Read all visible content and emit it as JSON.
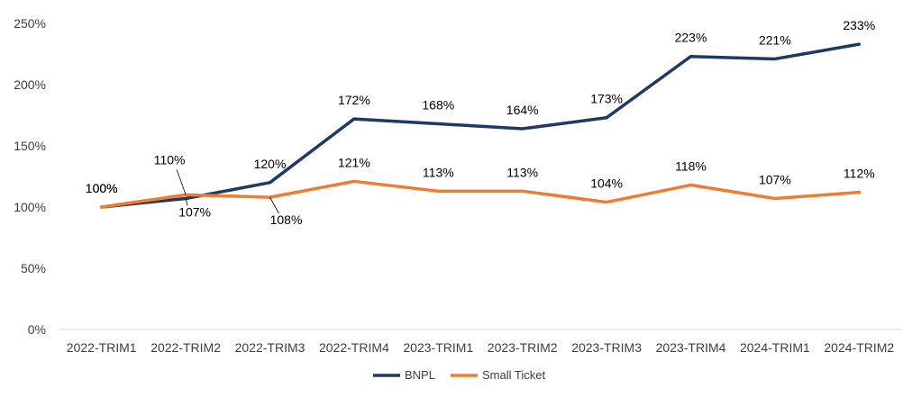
{
  "chart_data": {
    "type": "line",
    "categories": [
      "2022-TRIM1",
      "2022-TRIM2",
      "2022-TRIM3",
      "2022-TRIM4",
      "2023-TRIM1",
      "2023-TRIM2",
      "2023-TRIM3",
      "2023-TRIM4",
      "2024-TRIM1",
      "2024-TRIM2"
    ],
    "series": [
      {
        "name": "BNPL",
        "color": "#1f3864",
        "values": [
          100,
          107,
          120,
          172,
          168,
          164,
          173,
          223,
          221,
          233
        ],
        "labels": [
          "100%",
          "107%",
          "120%",
          "172%",
          "168%",
          "164%",
          "173%",
          "223%",
          "221%",
          "233%"
        ]
      },
      {
        "name": "Small Ticket",
        "color": "#ed7d31",
        "values": [
          100,
          110,
          108,
          121,
          113,
          113,
          104,
          118,
          107,
          112
        ],
        "labels": [
          "100%",
          "110%",
          "108%",
          "121%",
          "113%",
          "113%",
          "104%",
          "118%",
          "107%",
          "112%"
        ]
      }
    ],
    "ylim": [
      0,
      250
    ],
    "yticks": [
      {
        "value": 0,
        "label": "0%"
      },
      {
        "value": 50,
        "label": "50%"
      },
      {
        "value": 100,
        "label": "100%"
      },
      {
        "value": 150,
        "label": "150%"
      },
      {
        "value": 200,
        "label": "200%"
      },
      {
        "value": 250,
        "label": "250%"
      }
    ],
    "title": "",
    "xlabel": "",
    "ylabel": "",
    "grid": false,
    "legend": "bottom"
  }
}
